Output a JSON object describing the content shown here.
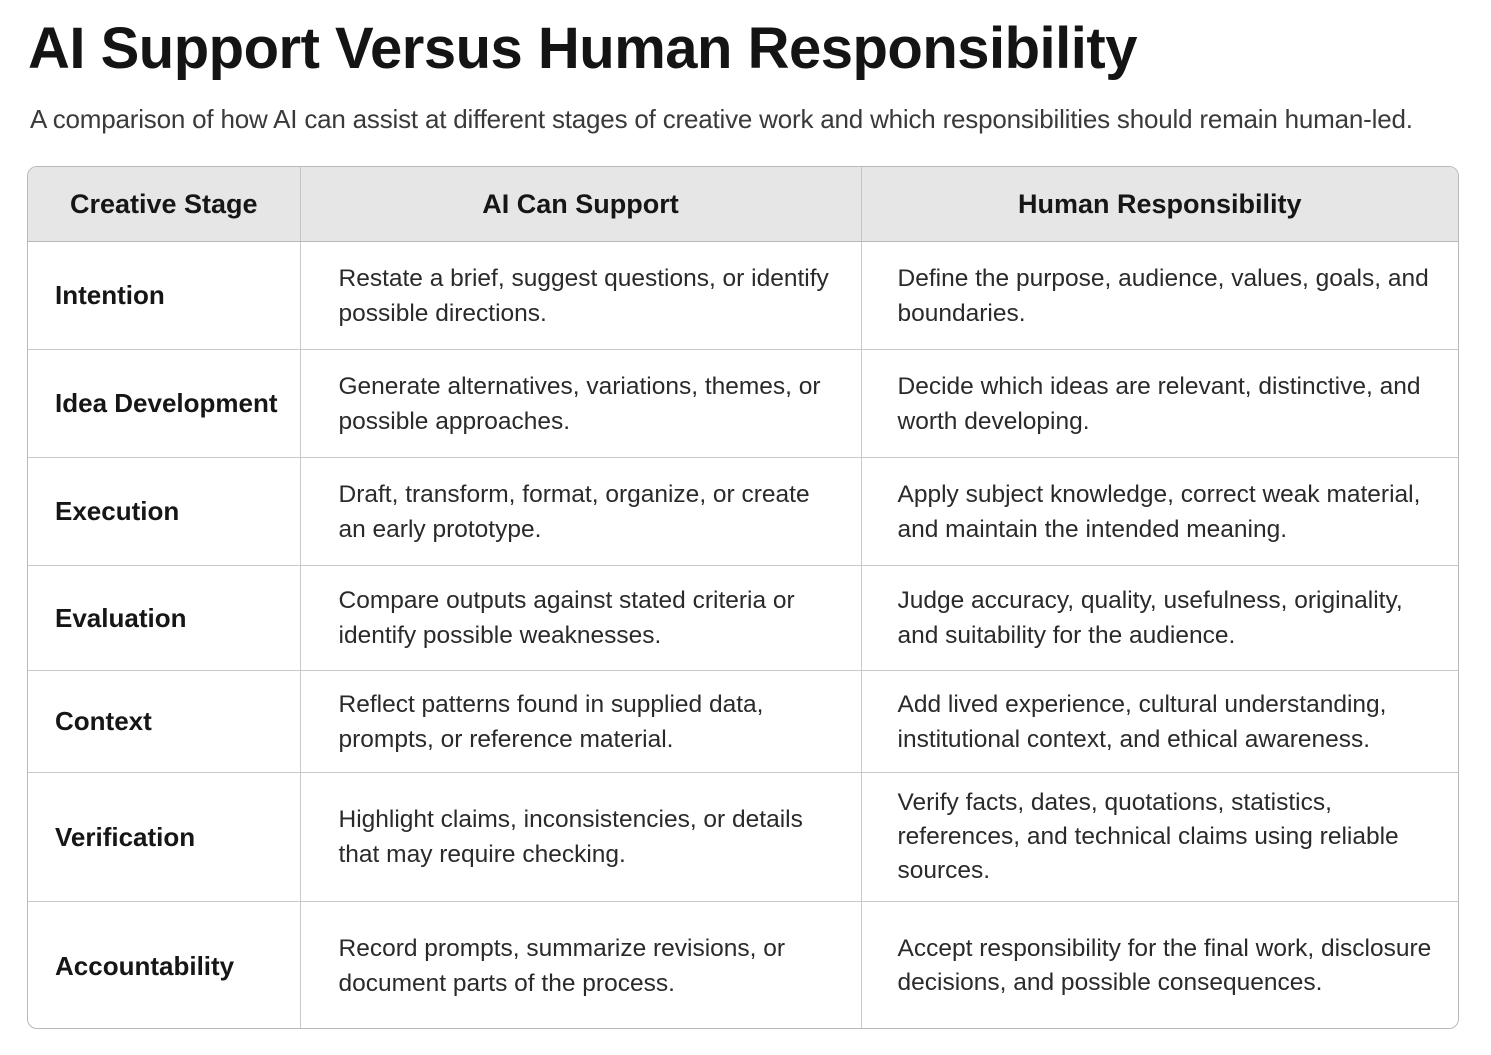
{
  "title": "AI Support Versus Human Responsibility",
  "subtitle": "A comparison of how AI can assist at different stages of creative work and which responsibilities should remain human-led.",
  "table": {
    "headers": [
      "Creative Stage",
      "AI Can Support",
      "Human Responsibility"
    ],
    "rows": [
      {
        "stage": "Intention",
        "ai": "Restate a brief, suggest questions, or identify possible directions.",
        "human": "Define the purpose, audience, values, goals, and boundaries."
      },
      {
        "stage": "Idea Development",
        "ai": "Generate alternatives, variations, themes, or possible approaches.",
        "human": "Decide which ideas are relevant, distinctive, and worth developing."
      },
      {
        "stage": "Execution",
        "ai": "Draft, transform, format, organize, or create an early prototype.",
        "human": "Apply subject knowledge, correct weak material, and maintain the intended meaning."
      },
      {
        "stage": "Evaluation",
        "ai": "Compare outputs against stated criteria or identify possible weaknesses.",
        "human": "Judge accuracy, quality, usefulness, originality, and suitability for the audience."
      },
      {
        "stage": "Context",
        "ai": "Reflect patterns found in supplied data, prompts, or reference material.",
        "human": "Add lived experience, cultural understanding, institutional context, and ethical awareness."
      },
      {
        "stage": "Verification",
        "ai": "Highlight claims, inconsistencies, or details that may require checking.",
        "human": "Verify facts, dates, quotations, statistics, references, and technical claims using reliable sources."
      },
      {
        "stage": "Accountability",
        "ai": "Record prompts, summarize revisions, or document parts of the process.",
        "human": "Accept responsibility for the final work, disclosure decisions, and possible consequences."
      }
    ]
  }
}
